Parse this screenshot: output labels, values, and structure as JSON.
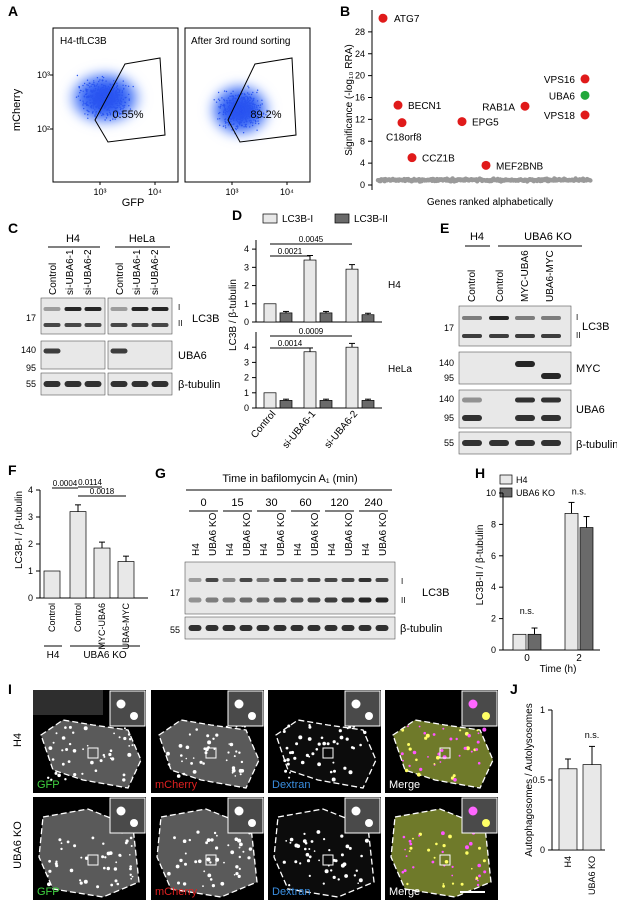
{
  "panels": {
    "A": {
      "letter": "A",
      "left_title": "H4-tfLC3B",
      "right_title": "After 3rd round sorting",
      "left_pct": "0.55%",
      "right_pct": "89.2%",
      "ylabel": "mCherry",
      "xlabel": "GFP",
      "yticks": [
        "10³",
        "10²"
      ],
      "xticks": [
        "10³",
        "10⁴"
      ]
    },
    "B": {
      "letter": "B",
      "ylabel": "Significance (-log₁₀ RRA)",
      "xlabel": "Genes ranked alphabetically",
      "chart_data": {
        "type": "scatter",
        "ylim": [
          0,
          32
        ],
        "yticks": [
          0,
          4,
          8,
          12,
          16,
          20,
          24,
          28
        ],
        "points": [
          {
            "label": "ATG7",
            "y": 30.5
          },
          {
            "label": "BECN1",
            "y": 14.6
          },
          {
            "label": "C18orf8",
            "y": 11.4
          },
          {
            "label": "CCZ1B",
            "y": 5.0
          },
          {
            "label": "EPG5",
            "y": 11.6
          },
          {
            "label": "MEF2BNB",
            "y": 3.6
          },
          {
            "label": "RAB1A",
            "y": 14.4
          },
          {
            "label": "UBA6",
            "y": 16.4
          },
          {
            "label": "VPS16",
            "y": 19.4
          },
          {
            "label": "VPS18",
            "y": 12.8
          }
        ]
      }
    },
    "C": {
      "letter": "C",
      "cell_lines": [
        "H4",
        "HeLa"
      ],
      "lanes": [
        "Control",
        "si-UBA6-1",
        "si-UBA6-2"
      ],
      "blots": [
        "LC3B",
        "UBA6",
        "β-tubulin"
      ],
      "mw": [
        "17",
        "140",
        "95",
        "55"
      ],
      "bands": [
        "I",
        "II"
      ]
    },
    "D": {
      "letter": "D",
      "legend": [
        "LC3B-I",
        "LC3B-II"
      ],
      "ylabel": "LC3B / β-tubulin",
      "categories": [
        "Control",
        "si-UBA6-1",
        "si-UBA6-2"
      ],
      "chart_data": [
        {
          "type": "bar",
          "title": "H4",
          "ylim": [
            0,
            4.5
          ],
          "yticks": [
            0,
            1,
            2,
            3,
            4
          ],
          "series": [
            {
              "name": "LC3B-I",
              "values": [
                1,
                3.4,
                2.9
              ]
            },
            {
              "name": "LC3B-II",
              "values": [
                0.5,
                0.5,
                0.4
              ]
            }
          ],
          "pvalues": [
            "0.0021",
            "0.0045"
          ]
        },
        {
          "type": "bar",
          "title": "HeLa",
          "ylim": [
            0,
            5
          ],
          "yticks": [
            0,
            1,
            2,
            3,
            4
          ],
          "series": [
            {
              "name": "LC3B-I",
              "values": [
                1,
                3.7,
                4.0
              ]
            },
            {
              "name": "LC3B-II",
              "values": [
                0.5,
                0.5,
                0.5
              ]
            }
          ],
          "pvalues": [
            "0.0014",
            "0.0009"
          ]
        }
      ]
    },
    "E": {
      "letter": "E",
      "groups": [
        "H4",
        "UBA6 KO"
      ],
      "lanes": [
        "Control",
        "Control",
        "MYC-UBA6",
        "UBA6-MYC"
      ],
      "blots": [
        "LC3B",
        "MYC",
        "UBA6",
        "β-tubulin"
      ],
      "mw": [
        "17",
        "140",
        "95",
        "140",
        "95",
        "55"
      ],
      "bands": [
        "I",
        "II"
      ]
    },
    "F": {
      "letter": "F",
      "ylabel": "LC3B-I / β-tubulin",
      "groups": [
        "H4",
        "UBA6 KO"
      ],
      "chart_data": {
        "type": "bar",
        "categories": [
          "Control",
          "Control",
          "MYC-UBA6",
          "UBA6-MYC"
        ],
        "values": [
          1,
          3.2,
          1.85,
          1.35
        ],
        "ylim": [
          0,
          4
        ],
        "yticks": [
          0,
          1,
          2,
          3,
          4
        ],
        "pvalues": [
          "0.0004",
          "0.0114",
          "0.0018"
        ]
      }
    },
    "G": {
      "letter": "G",
      "title": "Time in bafilomycin A₁ (min)",
      "times": [
        "0",
        "15",
        "30",
        "60",
        "120",
        "240"
      ],
      "lanes": [
        "H4",
        "UBA6 KO"
      ],
      "blots": [
        "LC3B",
        "β-tubulin"
      ],
      "mw": [
        "17",
        "55"
      ],
      "bands": [
        "I",
        "II"
      ]
    },
    "H": {
      "letter": "H",
      "legend": [
        "H4",
        "UBA6 KO"
      ],
      "ylabel": "LC3B-II / β-tubulin",
      "xlabel": "Time (h)",
      "chart_data": {
        "type": "bar",
        "categories": [
          "0",
          "2"
        ],
        "series": [
          {
            "name": "H4",
            "values": [
              1,
              8.7
            ]
          },
          {
            "name": "UBA6 KO",
            "values": [
              1,
              7.8
            ]
          }
        ],
        "ylim": [
          0,
          10
        ],
        "yticks": [
          0,
          2,
          4,
          6,
          8,
          10
        ],
        "annotations": [
          "n.s.",
          "n.s."
        ]
      }
    },
    "I": {
      "letter": "I",
      "rows": [
        "H4",
        "UBA6 KO"
      ],
      "channels": [
        "GFP",
        "mCherry",
        "Dextran",
        "Merge"
      ],
      "channel_colors": [
        "#3fd23f",
        "#e02020",
        "#3a8ee0",
        "#ffffff"
      ]
    },
    "J": {
      "letter": "J",
      "ylabel": "Autophagosomes / Autolysosomes",
      "chart_data": {
        "type": "bar",
        "categories": [
          "H4",
          "UBA6 KO"
        ],
        "values": [
          0.58,
          0.61
        ],
        "ylim": [
          0,
          1
        ],
        "yticks": [
          0,
          0.5,
          1
        ],
        "annotations": [
          "n.s."
        ]
      }
    }
  }
}
